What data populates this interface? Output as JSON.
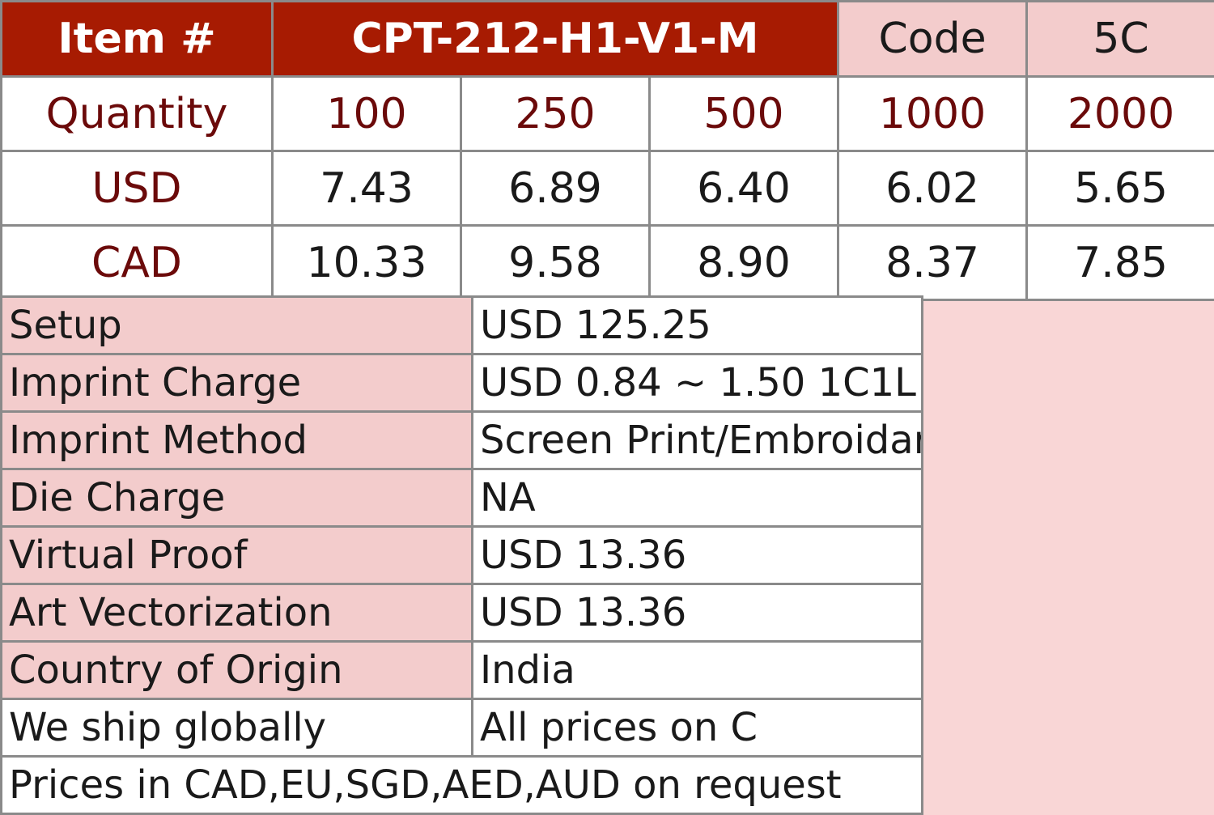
{
  "header": {
    "item_label": "Item #",
    "item_value": "CPT-212-H1-V1-M",
    "code_label": "Code",
    "code_value": "5C"
  },
  "quantity": {
    "label": "Quantity",
    "values": [
      "100",
      "250",
      "500",
      "1000",
      "2000"
    ]
  },
  "usd": {
    "label": "USD",
    "values": [
      "7.43",
      "6.89",
      "6.40",
      "6.02",
      "5.65"
    ]
  },
  "cad": {
    "label": "CAD",
    "values": [
      "10.33",
      "9.58",
      "8.90",
      "8.37",
      "7.85"
    ]
  },
  "details": [
    {
      "label": "Setup",
      "value": "USD 125.25"
    },
    {
      "label": "Imprint Charge",
      "value": "USD 0.84 ~ 1.50 1C1L"
    },
    {
      "label": "Imprint Method",
      "value": "Screen Print/Embroidary"
    },
    {
      "label": "Die Charge",
      "value": "NA"
    },
    {
      "label": "Virtual Proof",
      "value": "USD 13.36"
    },
    {
      "label": "Art Vectorization",
      "value": "USD 13.36"
    },
    {
      "label": "Country of Origin",
      "value": "India"
    },
    {
      "label": "We ship globally",
      "value": "All prices on C"
    }
  ],
  "footer_note": "Prices in CAD,EU,SGD,AED,AUD on request",
  "colors": {
    "header_dark": "#a71b02",
    "header_light": "#f3cccc",
    "label_text": "#6b0a0a",
    "background": "#f9d6d6"
  }
}
